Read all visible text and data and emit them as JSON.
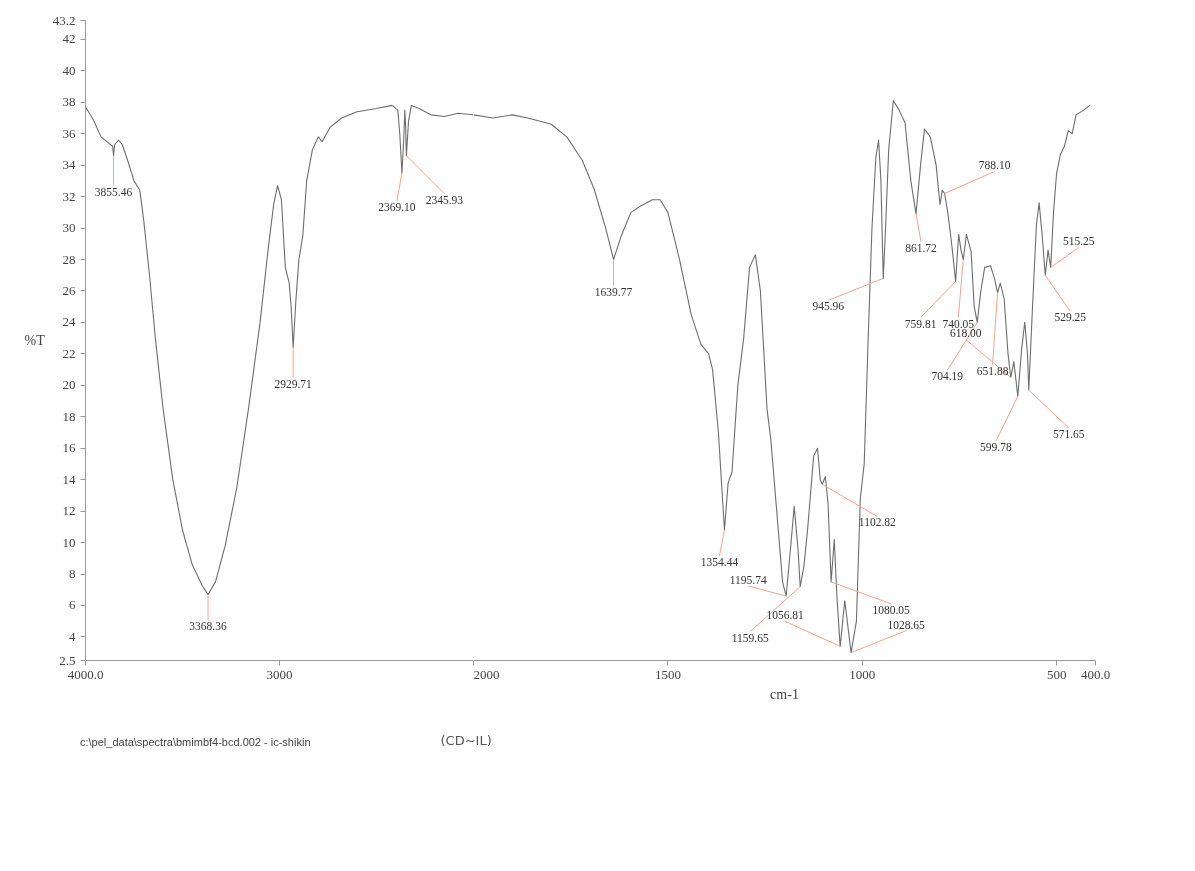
{
  "chart_data": [
    {
      "type": "line",
      "ylabel": "%T",
      "xlim": [
        4000,
        2000
      ],
      "ylim": [
        2.5,
        43.2
      ],
      "xticks": [
        {
          "value": 4000,
          "label": "4000.0"
        },
        3000
      ],
      "yticks": [
        2.5,
        4,
        6,
        8,
        10,
        12,
        14,
        16,
        18,
        20,
        22,
        24,
        26,
        28,
        30,
        32,
        34,
        36,
        38,
        40,
        42,
        43.2
      ],
      "grid": false,
      "legend": "bottom",
      "line_style": "solid",
      "marker": "none",
      "series": [
        {
          "name": "c:\\pel_data\\spectra\\bmimbf4-bcd.002 - ic-shikin",
          "color": "#6e6e6e",
          "x": [
            4000,
            3960,
            3920,
            3880,
            3860,
            3855.46,
            3850,
            3830,
            3810,
            3780,
            3750,
            3720,
            3700,
            3670,
            3640,
            3600,
            3550,
            3500,
            3450,
            3400,
            3368.36,
            3330,
            3280,
            3220,
            3160,
            3100,
            3060,
            3030,
            3010,
            2990,
            2970,
            2950,
            2940,
            2929.71,
            2915,
            2900,
            2880,
            2860,
            2830,
            2800,
            2780,
            2740,
            2680,
            2600,
            2500,
            2420,
            2390,
            2380,
            2369.1,
            2360,
            2354,
            2350,
            2345.93,
            2335,
            2320,
            2280,
            2220,
            2150,
            2080,
            2000
          ],
          "values": [
            37.7,
            36.9,
            35.8,
            35.4,
            35.2,
            34.6,
            35.3,
            35.6,
            35.3,
            34.2,
            33.0,
            32.4,
            30.5,
            27.0,
            23.0,
            18.5,
            14.0,
            10.8,
            8.6,
            7.3,
            6.7,
            7.5,
            9.8,
            13.5,
            18.5,
            24.0,
            28.5,
            31.5,
            32.7,
            31.8,
            27.5,
            26.5,
            25.0,
            22.4,
            25.5,
            28.0,
            29.5,
            33.0,
            35.0,
            35.8,
            35.5,
            36.4,
            37.0,
            37.4,
            37.6,
            37.8,
            37.5,
            36.0,
            33.5,
            35.5,
            37.5,
            36.5,
            34.6,
            36.8,
            37.8,
            37.6,
            37.2,
            37.1,
            37.3,
            37.2
          ]
        }
      ],
      "annotations": [
        {
          "text": "3855.46",
          "x": 3855.46,
          "y": 34.6
        },
        {
          "text": "3368.36",
          "x": 3368.36,
          "y": 6.7
        },
        {
          "text": "2929.71",
          "x": 2929.71,
          "y": 22.4
        },
        {
          "text": "2369.10",
          "x": 2369.1,
          "y": 33.5
        },
        {
          "text": "2345.93",
          "x": 2345.93,
          "y": 34.6
        },
        "(CD~IL)"
      ]
    },
    {
      "type": "line",
      "xlabel": "cm-1",
      "tick_labels": "x",
      "xlim": [
        2000,
        400
      ],
      "ylim": [
        2.5,
        43.2
      ],
      "xticks": [
        2000,
        1500,
        1000,
        500,
        {
          "value": 400,
          "label": "400.0"
        }
      ],
      "yticks": [
        2.5,
        4,
        6,
        8,
        10,
        12,
        14,
        16,
        18,
        20,
        22,
        24,
        26,
        28,
        30,
        32,
        34,
        36,
        38,
        40,
        42,
        43.2
      ],
      "grid": false,
      "line_style": "solid",
      "marker": "none",
      "series": [
        {
          "color": "#6e6e6e",
          "x": [
            2000,
            1950,
            1900,
            1860,
            1800,
            1760,
            1720,
            1690,
            1660,
            1639.77,
            1620,
            1595,
            1570,
            1540,
            1520,
            1500,
            1470,
            1440,
            1415,
            1395,
            1385,
            1370,
            1354.44,
            1345,
            1335,
            1320,
            1305,
            1290,
            1275,
            1262,
            1245,
            1235,
            1220,
            1205,
            1195.74,
            1185,
            1175,
            1165,
            1159.65,
            1150,
            1140,
            1125,
            1115,
            1108,
            1102.82,
            1095,
            1088,
            1080.05,
            1072,
            1065,
            1056.81,
            1045,
            1028.65,
            1015,
            1005,
            995,
            985,
            975,
            965,
            958,
            952,
            945.96,
            940,
            932,
            920,
            905,
            890,
            875,
            861.72,
            850,
            840,
            825,
            810,
            800,
            794,
            788.1,
            780,
            770,
            759.81,
            752,
            746,
            740.05,
            732,
            720,
            712,
            704.19,
            695,
            685,
            670,
            660,
            651.88,
            645,
            635,
            625,
            618.0,
            610,
            599.78,
            590,
            582,
            575,
            571.65,
            562,
            552,
            545,
            537,
            529.25,
            522,
            515.25,
            508,
            500,
            490,
            480,
            470,
            460,
            450,
            430,
            415
          ],
          "values": [
            37.2,
            37.0,
            37.2,
            37.0,
            36.6,
            35.8,
            34.3,
            32.5,
            30.0,
            28.0,
            29.5,
            31.0,
            31.4,
            31.8,
            31.8,
            31.0,
            28.0,
            24.5,
            22.6,
            22.0,
            21.0,
            17.0,
            10.8,
            13.8,
            14.5,
            20.0,
            23.0,
            27.5,
            28.3,
            26.0,
            18.5,
            16.5,
            12.0,
            7.5,
            6.6,
            9.5,
            12.3,
            9.5,
            7.2,
            8.5,
            11.0,
            15.5,
            16.0,
            14.0,
            13.7,
            14.2,
            12.5,
            7.5,
            10.2,
            6.5,
            3.4,
            6.3,
            3.0,
            5.0,
            12.8,
            15.0,
            22.8,
            30.0,
            34.5,
            35.6,
            33.0,
            26.8,
            30.0,
            35.0,
            38.1,
            37.5,
            36.7,
            33.0,
            30.9,
            34.0,
            36.3,
            35.8,
            34.0,
            31.5,
            32.4,
            32.2,
            31.0,
            29.0,
            26.6,
            29.6,
            28.6,
            28.0,
            29.6,
            28.5,
            25.0,
            24.0,
            26.0,
            27.5,
            27.6,
            26.8,
            25.9,
            26.5,
            25.5,
            22.0,
            20.5,
            21.5,
            19.3,
            22.3,
            24.0,
            22.0,
            19.7,
            25.0,
            30.2,
            31.6,
            29.5,
            27.0,
            28.6,
            27.5,
            31.0,
            33.5,
            34.7,
            35.2,
            36.2,
            36.0,
            37.2,
            37.5,
            37.8
          ]
        }
      ],
      "annotations": [
        {
          "text": "1639.77",
          "x": 1639.77,
          "y": 28.0
        },
        {
          "text": "1354.44",
          "x": 1354.44,
          "y": 10.8
        },
        {
          "text": "1195.74",
          "x": 1195.74,
          "y": 6.6
        },
        {
          "text": "1159.65",
          "x": 1159.65,
          "y": 7.2
        },
        {
          "text": "1102.82",
          "x": 1102.82,
          "y": 13.7
        },
        {
          "text": "1080.05",
          "x": 1080.05,
          "y": 7.5
        },
        {
          "text": "1056.81",
          "x": 1056.81,
          "y": 3.4
        },
        {
          "text": "1028.65",
          "x": 1028.65,
          "y": 3.0
        },
        {
          "text": "945.96",
          "x": 945.96,
          "y": 26.8
        },
        {
          "text": "861.72",
          "x": 861.72,
          "y": 30.9
        },
        {
          "text": "788.10",
          "x": 788.1,
          "y": 32.2
        },
        {
          "text": "759.81",
          "x": 759.81,
          "y": 26.6
        },
        {
          "text": "740.05",
          "x": 740.05,
          "y": 28.0
        },
        {
          "text": "704.19",
          "x": 704.19,
          "y": 24.0
        },
        {
          "text": "651.88",
          "x": 651.88,
          "y": 25.9
        },
        {
          "text": "618.00",
          "x": 618.0,
          "y": 20.5
        },
        {
          "text": "599.78",
          "x": 599.78,
          "y": 19.3
        },
        {
          "text": "571.65",
          "x": 571.65,
          "y": 19.7
        },
        {
          "text": "529.25",
          "x": 529.25,
          "y": 27.0
        },
        {
          "text": "515.25",
          "x": 515.25,
          "y": 27.5
        }
      ]
    }
  ]
}
